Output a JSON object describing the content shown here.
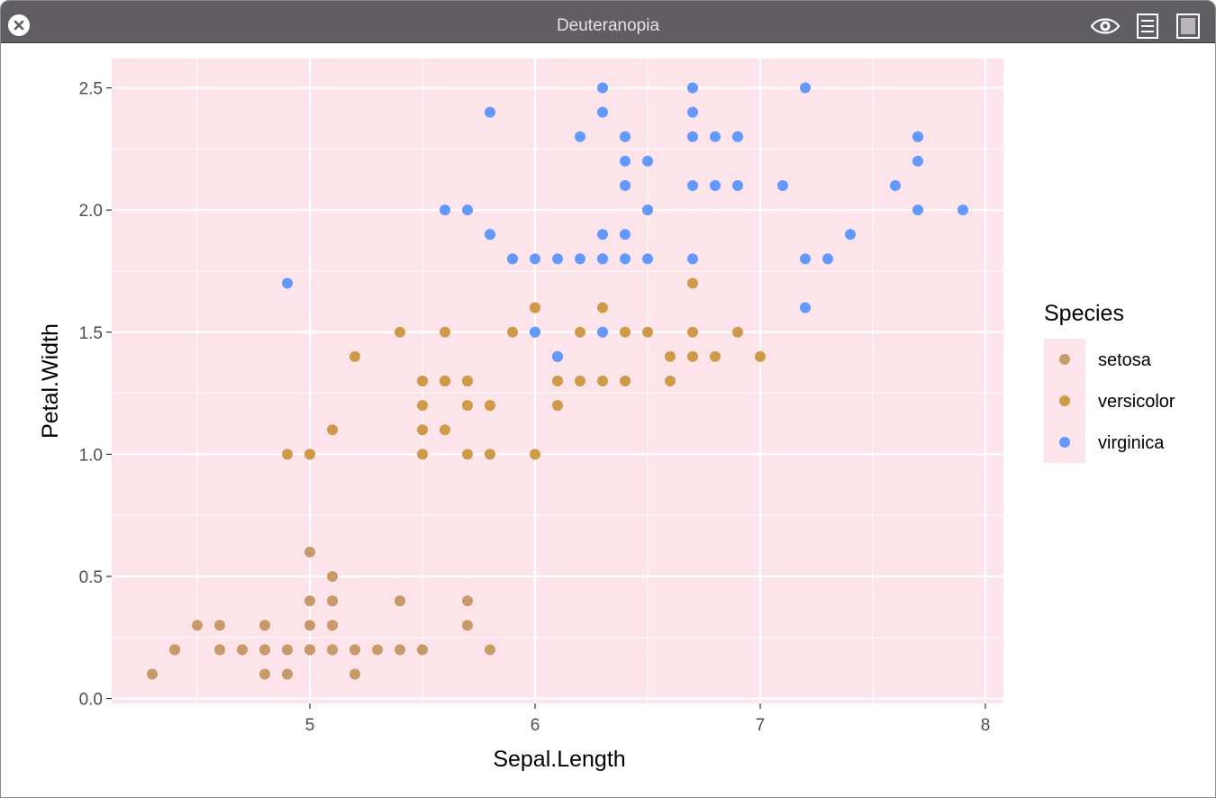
{
  "window": {
    "title": "Deuteranopia",
    "close_icon": "close-icon",
    "toolbar_icons": [
      "eye-icon",
      "list-icon",
      "square-icon"
    ]
  },
  "colors": {
    "titlebar": "#605e63",
    "panel_bg": "#fde4ea",
    "grid": "#ffffff",
    "setosa": "#c89a6a",
    "versicolor": "#cd9a47",
    "virginica": "#6199ff"
  },
  "chart_data": {
    "type": "scatter",
    "xlabel": "Sepal.Length",
    "ylabel": "Petal.Width",
    "xlim": [
      4.12,
      8.08
    ],
    "ylim": [
      -0.02,
      2.62
    ],
    "x_ticks": [
      5,
      6,
      7,
      8
    ],
    "x_tick_labels": [
      "5",
      "6",
      "7",
      "8"
    ],
    "y_ticks": [
      0,
      0.5,
      1,
      1.5,
      2,
      2.5
    ],
    "y_tick_labels": [
      "0.0",
      "0.5",
      "1.0",
      "1.5",
      "2.0",
      "2.5"
    ],
    "grid": true,
    "legend": {
      "title": "Species",
      "placement": "right",
      "entries": [
        "setosa",
        "versicolor",
        "virginica"
      ]
    },
    "series": [
      {
        "name": "setosa",
        "x": [
          5.1,
          4.9,
          4.7,
          4.6,
          5.0,
          5.4,
          4.6,
          5.0,
          4.4,
          4.9,
          5.4,
          4.8,
          4.8,
          4.3,
          5.8,
          5.7,
          5.4,
          5.1,
          5.7,
          5.1,
          5.4,
          5.1,
          4.6,
          5.1,
          4.8,
          5.0,
          5.0,
          5.2,
          5.2,
          4.7,
          4.8,
          5.4,
          5.2,
          5.5,
          4.9,
          5.0,
          5.5,
          4.9,
          4.4,
          5.1,
          5.0,
          4.5,
          4.4,
          5.0,
          5.1,
          4.8,
          5.1,
          4.6,
          5.3,
          5.0
        ],
        "y": [
          0.2,
          0.2,
          0.2,
          0.2,
          0.2,
          0.4,
          0.3,
          0.2,
          0.2,
          0.1,
          0.2,
          0.2,
          0.1,
          0.1,
          0.2,
          0.4,
          0.4,
          0.3,
          0.3,
          0.3,
          0.2,
          0.4,
          0.2,
          0.5,
          0.2,
          0.2,
          0.4,
          0.2,
          0.2,
          0.2,
          0.2,
          0.4,
          0.1,
          0.2,
          0.2,
          0.2,
          0.2,
          0.1,
          0.2,
          0.2,
          0.3,
          0.3,
          0.2,
          0.6,
          0.4,
          0.3,
          0.2,
          0.2,
          0.2,
          0.2
        ]
      },
      {
        "name": "versicolor",
        "x": [
          7.0,
          6.4,
          6.9,
          5.5,
          6.5,
          5.7,
          6.3,
          4.9,
          6.6,
          5.2,
          5.0,
          5.9,
          6.0,
          6.1,
          5.6,
          6.7,
          5.6,
          5.8,
          6.2,
          5.6,
          5.9,
          6.1,
          6.3,
          6.1,
          6.4,
          6.6,
          6.8,
          6.7,
          6.0,
          5.7,
          5.5,
          5.5,
          5.8,
          6.0,
          5.4,
          6.0,
          6.7,
          6.3,
          5.6,
          5.5,
          5.5,
          6.1,
          5.8,
          5.0,
          5.6,
          5.7,
          5.7,
          6.2,
          5.1,
          5.7
        ],
        "y": [
          1.4,
          1.5,
          1.5,
          1.3,
          1.5,
          1.3,
          1.6,
          1.0,
          1.3,
          1.4,
          1.0,
          1.5,
          1.0,
          1.4,
          1.3,
          1.4,
          1.5,
          1.0,
          1.5,
          1.1,
          1.8,
          1.3,
          1.5,
          1.2,
          1.3,
          1.4,
          1.4,
          1.7,
          1.5,
          1.0,
          1.1,
          1.0,
          1.2,
          1.6,
          1.5,
          1.6,
          1.5,
          1.3,
          1.3,
          1.3,
          1.2,
          1.4,
          1.2,
          1.0,
          1.3,
          1.2,
          1.3,
          1.3,
          1.1,
          1.3
        ]
      },
      {
        "name": "virginica",
        "x": [
          6.3,
          5.8,
          7.1,
          6.3,
          6.5,
          7.6,
          4.9,
          7.3,
          6.7,
          7.2,
          6.5,
          6.4,
          6.8,
          5.7,
          5.8,
          6.4,
          6.5,
          7.7,
          7.7,
          6.0,
          6.9,
          5.6,
          7.7,
          6.3,
          6.7,
          7.2,
          6.2,
          6.1,
          6.4,
          7.2,
          7.4,
          7.9,
          6.4,
          6.3,
          6.1,
          7.7,
          6.3,
          6.4,
          6.0,
          6.9,
          6.7,
          6.9,
          5.8,
          6.8,
          6.7,
          6.7,
          6.3,
          6.5,
          6.2,
          5.9
        ],
        "y": [
          2.5,
          1.9,
          2.1,
          1.8,
          2.2,
          2.1,
          1.7,
          1.8,
          1.8,
          2.5,
          2.0,
          1.9,
          2.1,
          2.0,
          2.4,
          2.3,
          1.8,
          2.2,
          2.3,
          1.5,
          2.3,
          2.0,
          2.0,
          1.8,
          2.1,
          1.8,
          1.8,
          1.8,
          2.1,
          1.6,
          1.9,
          2.0,
          2.2,
          1.5,
          1.4,
          2.3,
          2.4,
          1.8,
          1.8,
          2.1,
          2.4,
          2.3,
          1.9,
          2.3,
          2.5,
          2.3,
          1.9,
          2.0,
          2.3,
          1.8
        ]
      }
    ]
  }
}
